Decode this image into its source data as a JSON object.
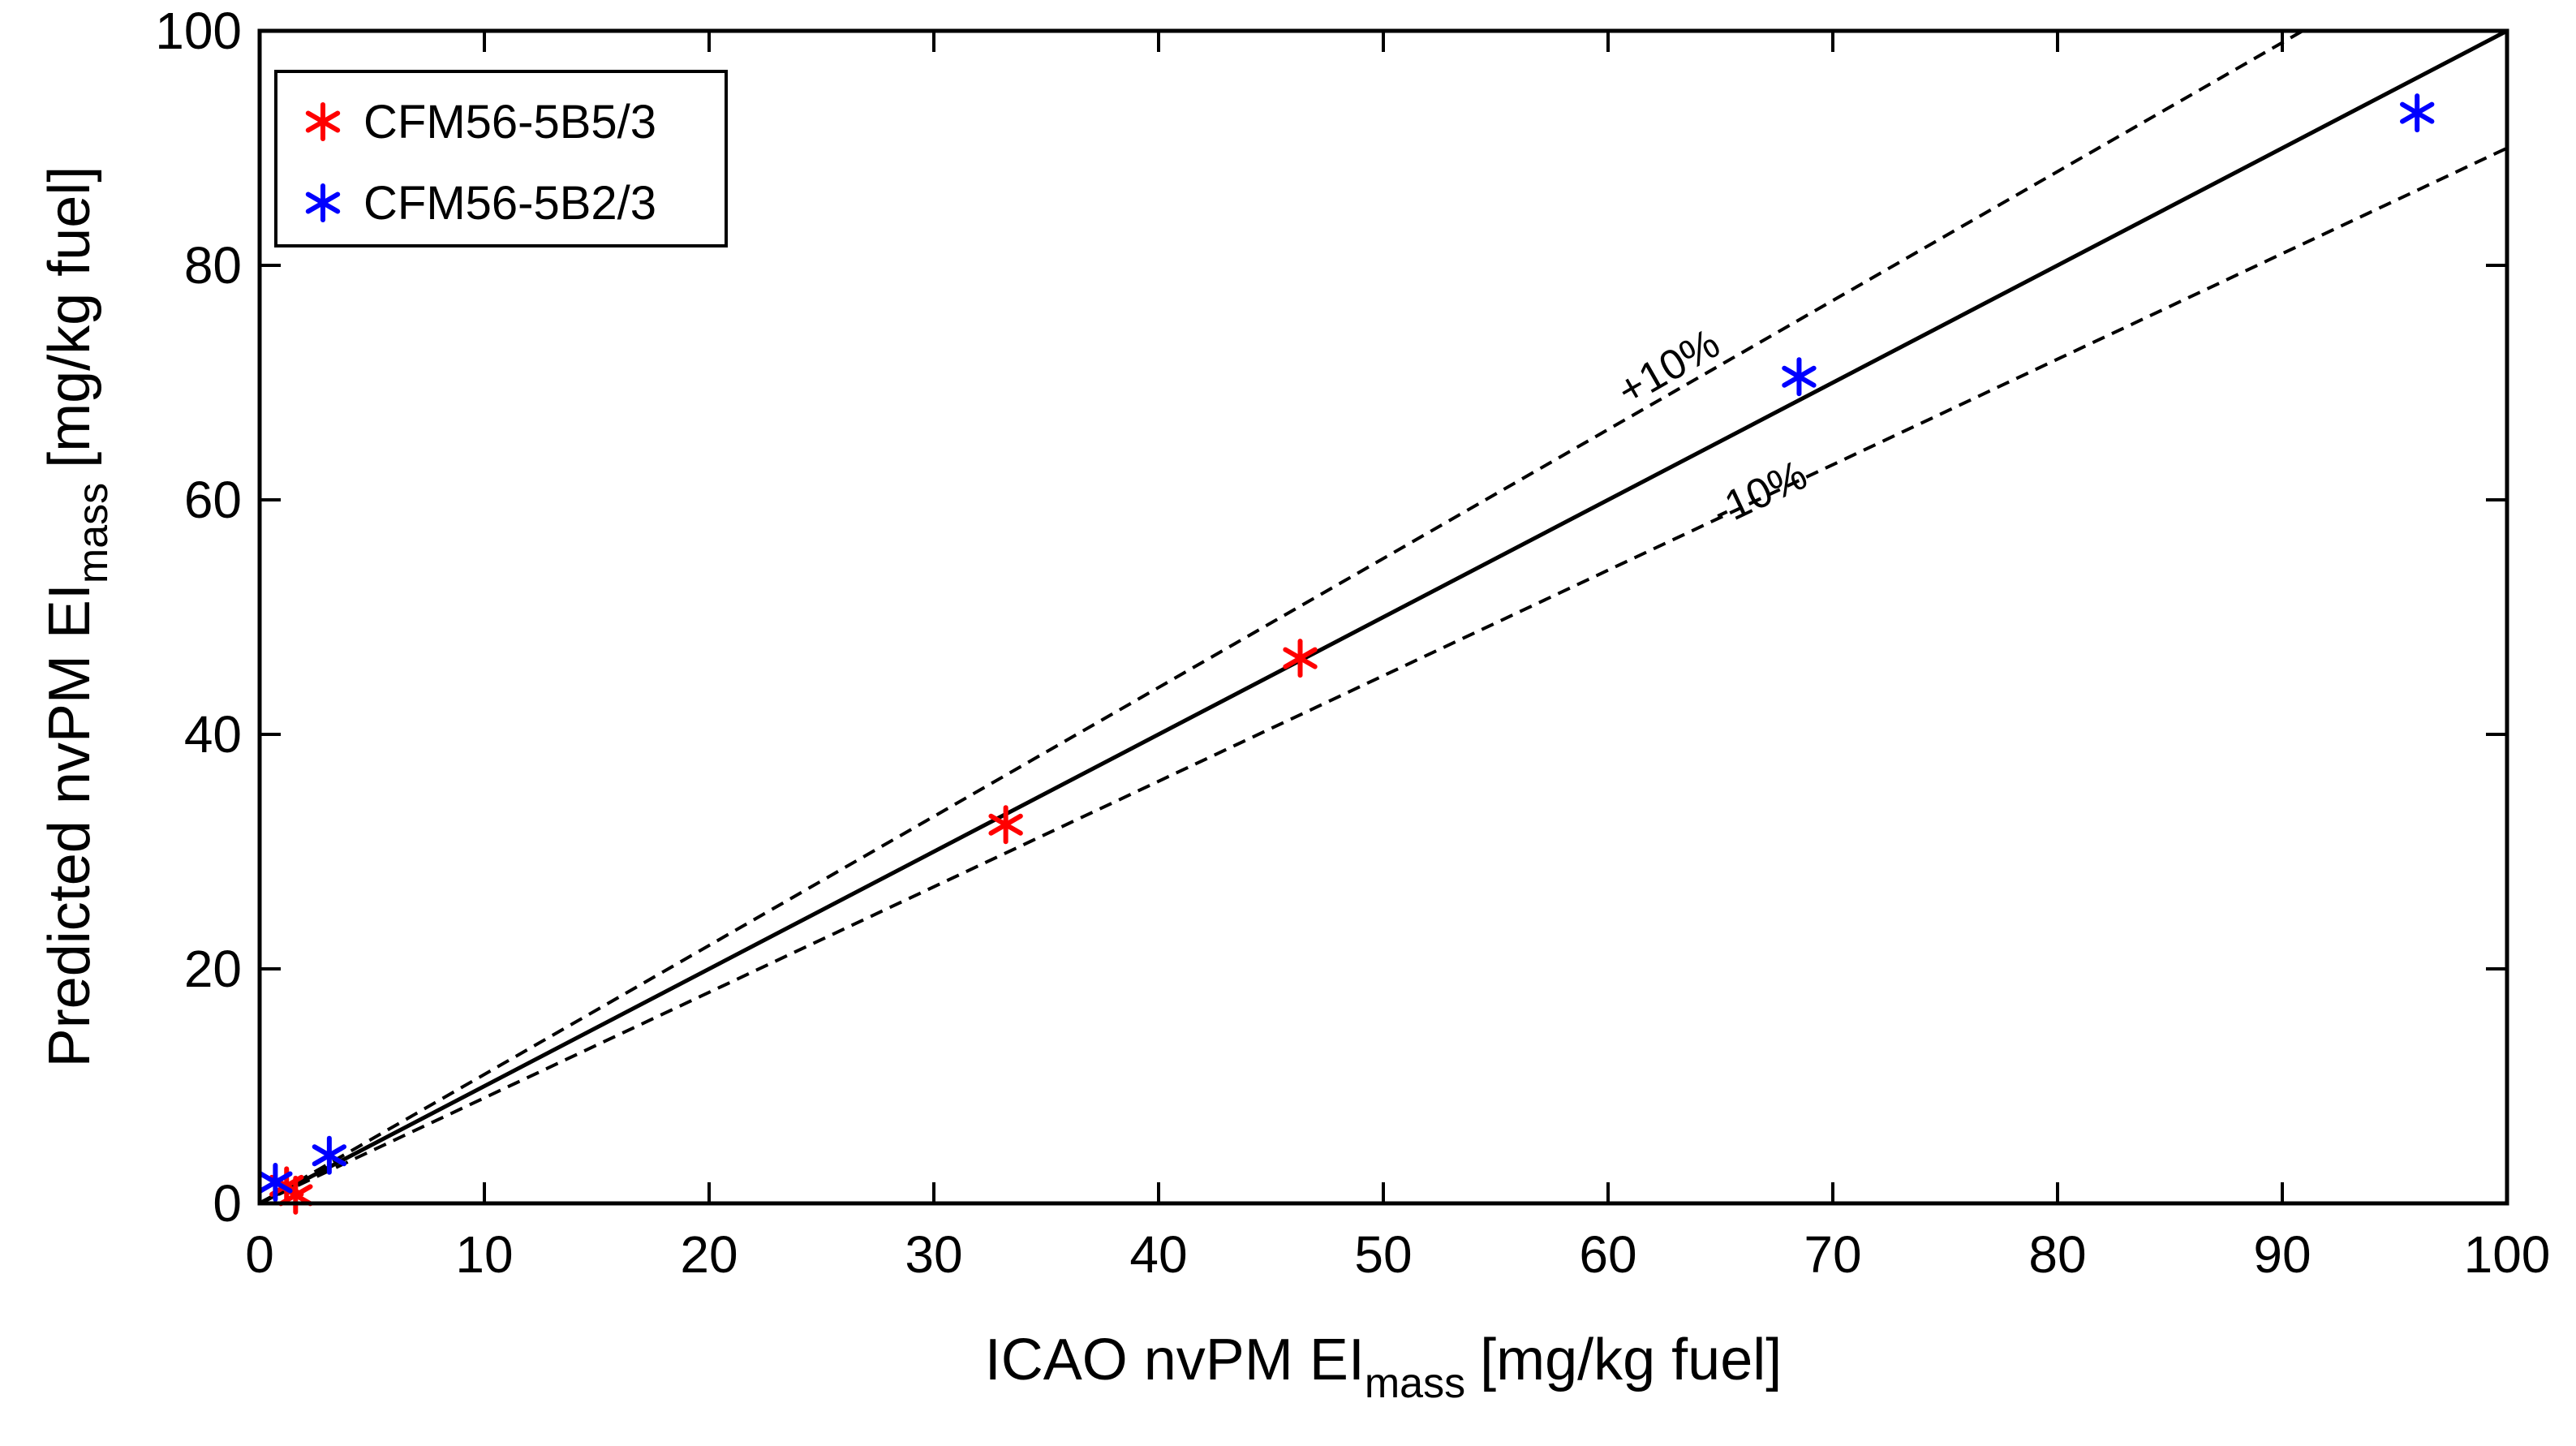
{
  "chart_data": {
    "type": "scatter",
    "xlabel": {
      "main": "ICAO nvPM EI",
      "sub": "mass",
      "unit": "[mg/kg fuel]"
    },
    "ylabel": {
      "main": "Predicted nvPM EI",
      "sub": "mass",
      "unit": "[mg/kg fuel]"
    },
    "xlim": [
      0,
      100
    ],
    "ylim": [
      0,
      100
    ],
    "xticks": [
      0,
      10,
      20,
      30,
      40,
      50,
      60,
      70,
      80,
      90,
      100
    ],
    "yticks": [
      0,
      20,
      40,
      60,
      80,
      100
    ],
    "grid": false,
    "legend_position": "top-left",
    "series": [
      {
        "name": "CFM56-5B5/3",
        "color": "#ff0000",
        "marker": "asterisk",
        "points": [
          {
            "x": 1.2,
            "y": 1.5
          },
          {
            "x": 1.6,
            "y": 0.7
          },
          {
            "x": 33.2,
            "y": 32.3
          },
          {
            "x": 46.3,
            "y": 46.5
          }
        ]
      },
      {
        "name": "CFM56-5B2/3",
        "color": "#0000ff",
        "marker": "asterisk",
        "points": [
          {
            "x": 0.7,
            "y": 1.8
          },
          {
            "x": 3.1,
            "y": 4.1
          },
          {
            "x": 68.5,
            "y": 70.5
          },
          {
            "x": 96.0,
            "y": 93.0
          }
        ]
      }
    ],
    "reference_lines": [
      {
        "name": "1:1 line",
        "slope": 1.0,
        "style": "solid"
      },
      {
        "name": "+10% line",
        "slope": 1.1,
        "style": "dashed",
        "label": "+10%"
      },
      {
        "name": "-10% line",
        "slope": 0.9,
        "style": "dashed",
        "label": "-10%"
      }
    ]
  }
}
